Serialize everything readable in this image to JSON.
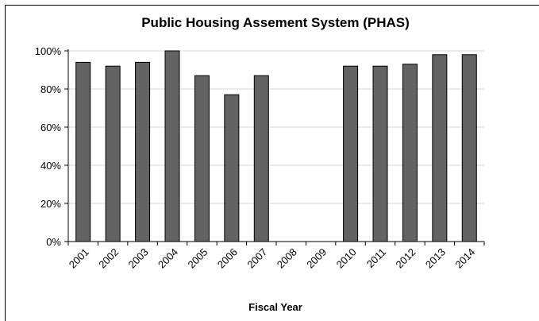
{
  "chart_data": {
    "type": "bar",
    "title": "Public Housing Assement System  (PHAS)",
    "xlabel": "Fiscal Year",
    "ylabel": "",
    "categories": [
      "2001",
      "2002",
      "2003",
      "2004",
      "2005",
      "2006",
      "2007",
      "2008",
      "2009",
      "2010",
      "2011",
      "2012",
      "2013",
      "2014"
    ],
    "values": [
      94,
      92,
      94,
      100,
      87,
      77,
      87,
      null,
      null,
      92,
      92,
      93,
      98,
      98
    ],
    "ylim": [
      0,
      100
    ],
    "yticks": [
      0,
      20,
      40,
      60,
      80,
      100
    ],
    "ytick_labels": [
      "0%",
      "20%",
      "40%",
      "60%",
      "80%",
      "100%"
    ],
    "grid": true,
    "legend": "none",
    "bar_color": "#636363",
    "bar_edge_color": "#000000",
    "grid_color": "#d9d9d9"
  }
}
